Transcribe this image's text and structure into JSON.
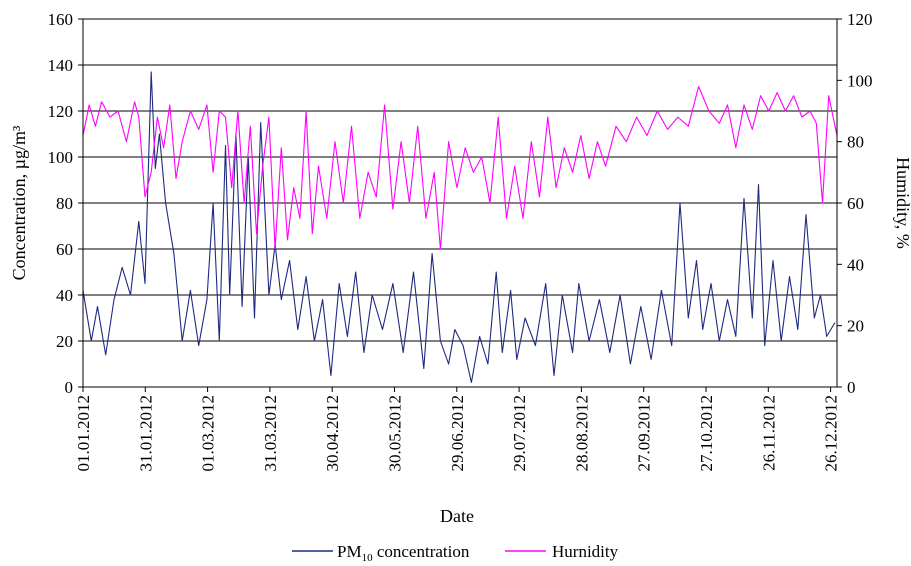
{
  "chart_data": {
    "type": "line",
    "xlabel": "Date",
    "ylabel_left": "Concentration, µg/m³",
    "ylabel_right": "Humidity, %",
    "x_tick_labels": [
      "01.01.2012",
      "31.01.2012",
      "01.03.2012",
      "31.03.2012",
      "30.04.2012",
      "30.05.2012",
      "29.06.2012",
      "29.07.2012",
      "28.08.2012",
      "27.09.2012",
      "27.10.2012",
      "26.11.2012",
      "26.12.2012"
    ],
    "ylim_left": [
      0,
      160
    ],
    "ylim_right": [
      0,
      120
    ],
    "y_ticks_left": [
      "0",
      "20",
      "40",
      "60",
      "80",
      "100",
      "120",
      "140",
      "160"
    ],
    "y_ticks_right": [
      "0",
      "20",
      "40",
      "60",
      "80",
      "100",
      "120"
    ],
    "grid": "horizontal",
    "legend_position": "bottom",
    "series": [
      {
        "name": "PM10 concentration",
        "legend_main": "PM",
        "legend_sub": "10",
        "legend_rest": " concentration",
        "axis": "left",
        "color": "#1f2a80",
        "x": [
          "2012-01-01",
          "2012-01-05",
          "2012-01-08",
          "2012-01-12",
          "2012-01-16",
          "2012-01-20",
          "2012-01-24",
          "2012-01-28",
          "2012-01-31",
          "2012-02-03",
          "2012-02-05",
          "2012-02-07",
          "2012-02-10",
          "2012-02-14",
          "2012-02-18",
          "2012-02-22",
          "2012-02-26",
          "2012-03-01",
          "2012-03-04",
          "2012-03-07",
          "2012-03-10",
          "2012-03-12",
          "2012-03-15",
          "2012-03-18",
          "2012-03-21",
          "2012-03-24",
          "2012-03-27",
          "2012-03-31",
          "2012-04-03",
          "2012-04-06",
          "2012-04-10",
          "2012-04-14",
          "2012-04-18",
          "2012-04-22",
          "2012-04-26",
          "2012-04-30",
          "2012-05-04",
          "2012-05-08",
          "2012-05-12",
          "2012-05-16",
          "2012-05-20",
          "2012-05-25",
          "2012-05-30",
          "2012-06-04",
          "2012-06-09",
          "2012-06-14",
          "2012-06-18",
          "2012-06-22",
          "2012-06-26",
          "2012-06-29",
          "2012-07-03",
          "2012-07-07",
          "2012-07-11",
          "2012-07-15",
          "2012-07-19",
          "2012-07-22",
          "2012-07-26",
          "2012-07-29",
          "2012-08-02",
          "2012-08-07",
          "2012-08-12",
          "2012-08-16",
          "2012-08-20",
          "2012-08-25",
          "2012-08-28",
          "2012-09-02",
          "2012-09-07",
          "2012-09-12",
          "2012-09-17",
          "2012-09-22",
          "2012-09-27",
          "2012-10-02",
          "2012-10-07",
          "2012-10-12",
          "2012-10-16",
          "2012-10-20",
          "2012-10-24",
          "2012-10-27",
          "2012-10-31",
          "2012-11-04",
          "2012-11-08",
          "2012-11-12",
          "2012-11-16",
          "2012-11-20",
          "2012-11-23",
          "2012-11-26",
          "2012-11-30",
          "2012-12-04",
          "2012-12-08",
          "2012-12-12",
          "2012-12-16",
          "2012-12-20",
          "2012-12-23",
          "2012-12-26",
          "2012-12-30"
        ],
        "values": [
          42,
          20,
          35,
          14,
          38,
          52,
          40,
          72,
          45,
          137,
          95,
          110,
          80,
          58,
          20,
          42,
          18,
          38,
          80,
          20,
          105,
          40,
          110,
          35,
          100,
          30,
          115,
          40,
          62,
          38,
          55,
          25,
          48,
          20,
          38,
          5,
          45,
          22,
          50,
          15,
          40,
          25,
          45,
          15,
          50,
          8,
          58,
          20,
          10,
          25,
          18,
          2,
          22,
          10,
          50,
          15,
          42,
          12,
          30,
          18,
          45,
          5,
          40,
          15,
          45,
          20,
          38,
          15,
          40,
          10,
          35,
          12,
          42,
          18,
          80,
          30,
          55,
          25,
          45,
          20,
          38,
          22,
          82,
          30,
          88,
          18,
          55,
          20,
          48,
          25,
          75,
          30,
          40,
          22,
          28
        ]
      },
      {
        "name": "Hurnidity",
        "axis": "right",
        "color": "#ff00ff",
        "x": [
          "2012-01-01",
          "2012-01-04",
          "2012-01-07",
          "2012-01-10",
          "2012-01-14",
          "2012-01-18",
          "2012-01-22",
          "2012-01-26",
          "2012-01-28",
          "2012-01-31",
          "2012-02-03",
          "2012-02-06",
          "2012-02-09",
          "2012-02-12",
          "2012-02-15",
          "2012-02-18",
          "2012-02-22",
          "2012-02-26",
          "2012-03-01",
          "2012-03-04",
          "2012-03-07",
          "2012-03-10",
          "2012-03-13",
          "2012-03-16",
          "2012-03-19",
          "2012-03-22",
          "2012-03-25",
          "2012-03-28",
          "2012-03-31",
          "2012-04-03",
          "2012-04-06",
          "2012-04-09",
          "2012-04-12",
          "2012-04-15",
          "2012-04-18",
          "2012-04-21",
          "2012-04-24",
          "2012-04-28",
          "2012-05-02",
          "2012-05-06",
          "2012-05-10",
          "2012-05-14",
          "2012-05-18",
          "2012-05-22",
          "2012-05-26",
          "2012-05-30",
          "2012-06-03",
          "2012-06-07",
          "2012-06-11",
          "2012-06-15",
          "2012-06-19",
          "2012-06-22",
          "2012-06-26",
          "2012-06-30",
          "2012-07-04",
          "2012-07-08",
          "2012-07-12",
          "2012-07-16",
          "2012-07-20",
          "2012-07-24",
          "2012-07-28",
          "2012-08-01",
          "2012-08-05",
          "2012-08-09",
          "2012-08-13",
          "2012-08-17",
          "2012-08-21",
          "2012-08-25",
          "2012-08-29",
          "2012-09-02",
          "2012-09-06",
          "2012-09-10",
          "2012-09-15",
          "2012-09-20",
          "2012-09-25",
          "2012-09-30",
          "2012-10-05",
          "2012-10-10",
          "2012-10-15",
          "2012-10-20",
          "2012-10-25",
          "2012-10-30",
          "2012-11-04",
          "2012-11-08",
          "2012-11-12",
          "2012-11-16",
          "2012-11-20",
          "2012-11-24",
          "2012-11-28",
          "2012-12-02",
          "2012-12-06",
          "2012-12-10",
          "2012-12-14",
          "2012-12-18",
          "2012-12-21",
          "2012-12-24",
          "2012-12-27",
          "2012-12-31"
        ],
        "values": [
          82,
          92,
          85,
          93,
          88,
          90,
          80,
          93,
          88,
          62,
          70,
          88,
          78,
          92,
          68,
          80,
          90,
          84,
          92,
          70,
          90,
          88,
          65,
          90,
          60,
          85,
          50,
          72,
          88,
          45,
          78,
          48,
          65,
          55,
          90,
          50,
          72,
          55,
          80,
          60,
          85,
          55,
          70,
          62,
          92,
          58,
          80,
          60,
          85,
          55,
          70,
          45,
          80,
          65,
          78,
          70,
          75,
          60,
          88,
          55,
          72,
          55,
          80,
          62,
          88,
          65,
          78,
          70,
          82,
          68,
          80,
          72,
          85,
          80,
          88,
          82,
          90,
          84,
          88,
          85,
          98,
          90,
          86,
          92,
          78,
          92,
          84,
          95,
          90,
          96,
          90,
          95,
          88,
          90,
          86,
          60,
          95,
          82
        ]
      }
    ]
  }
}
